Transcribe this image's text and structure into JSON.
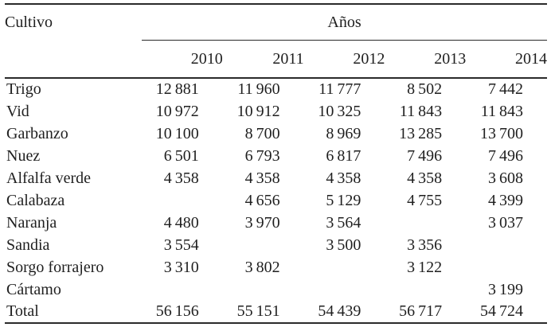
{
  "page": {
    "background": "#ffffff",
    "text_color": "#1f1f1f",
    "rule_color": "#2a2a2a"
  },
  "table": {
    "corner_label": "Cultivo",
    "spanner_label": "Años",
    "years": [
      "2010",
      "2011",
      "2012",
      "2013",
      "2014"
    ],
    "rows": [
      {
        "label": "Trigo",
        "values": [
          "12 881",
          "11 960",
          "11 777",
          "8 502",
          "7 442"
        ]
      },
      {
        "label": "Vid",
        "values": [
          "10 972",
          "10 912",
          "10 325",
          "11 843",
          "11 843"
        ]
      },
      {
        "label": "Garbanzo",
        "values": [
          "10 100",
          "8 700",
          "8 969",
          "13 285",
          "13 700"
        ]
      },
      {
        "label": "Nuez",
        "values": [
          "6 501",
          "6 793",
          "6 817",
          "7 496",
          "7 496"
        ]
      },
      {
        "label": "Alfalfa verde",
        "values": [
          "4 358",
          "4 358",
          "4 358",
          "4 358",
          "3 608"
        ]
      },
      {
        "label": "Calabaza",
        "values": [
          "",
          "4 656",
          "5 129",
          "4 755",
          "4 399"
        ]
      },
      {
        "label": "Naranja",
        "values": [
          "4 480",
          "3 970",
          "3 564",
          "",
          "3 037"
        ]
      },
      {
        "label": "Sandia",
        "values": [
          "3 554",
          "",
          "3 500",
          "3 356",
          ""
        ]
      },
      {
        "label": "Sorgo forrajero",
        "values": [
          "3 310",
          "3 802",
          "",
          "3 122",
          ""
        ]
      },
      {
        "label": "Cártamo",
        "values": [
          "",
          "",
          "",
          "",
          "3 199"
        ]
      },
      {
        "label": "Total",
        "values": [
          "56 156",
          "55 151",
          "54 439",
          "56 717",
          "54 724"
        ]
      }
    ]
  }
}
